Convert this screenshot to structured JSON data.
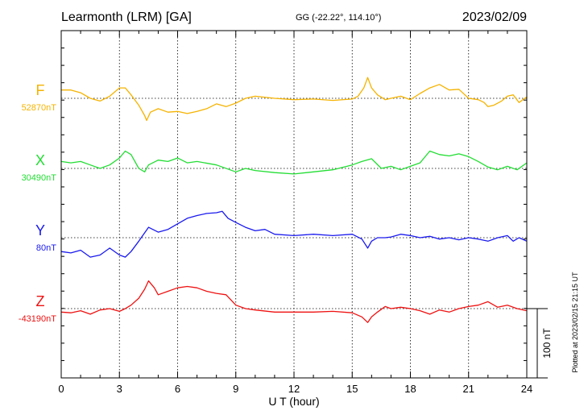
{
  "header": {
    "station": "Learmonth (LRM)  [GA]",
    "coords": "GG (-22.22°, 114.10°)",
    "date": "2023/02/09"
  },
  "footer": {
    "plotted": "Plotted at 2023/02/15 21:15 UT"
  },
  "chart_data": {
    "type": "line",
    "xlabel": "U T (hour)",
    "xlim": [
      0,
      24
    ],
    "xticks": [
      0,
      3,
      6,
      9,
      12,
      15,
      18,
      21,
      24
    ],
    "scale_bar": "100 nT",
    "scale_bar_nT": 100,
    "grid": true,
    "series": [
      {
        "name": "F",
        "baseline_label": "52870nT",
        "color": "#f5b301",
        "x": [
          0,
          0.5,
          1,
          1.5,
          2,
          2.5,
          3,
          3.3,
          3.6,
          4,
          4.3,
          4.4,
          4.6,
          5,
          5.5,
          6,
          6.5,
          7,
          7.5,
          8,
          8.5,
          9,
          9.5,
          10,
          11,
          12,
          13,
          14,
          15,
          15.3,
          15.6,
          15.8,
          16,
          16.3,
          16.7,
          17,
          17.5,
          18,
          18.5,
          19,
          19.5,
          20,
          20.5,
          21,
          21.5,
          21.8,
          22,
          22.3,
          22.7,
          23,
          23.3,
          23.6,
          24
        ],
        "y": [
          12,
          12,
          8,
          0,
          -4,
          3,
          15,
          15,
          5,
          -10,
          -25,
          -32,
          -20,
          -15,
          -20,
          -19,
          -22,
          -19,
          -15,
          -8,
          -12,
          -7,
          0,
          3,
          0,
          -2,
          -1,
          -3,
          -1,
          3,
          15,
          30,
          15,
          5,
          -2,
          0,
          3,
          -2,
          7,
          15,
          20,
          12,
          13,
          0,
          -2,
          -6,
          -12,
          -10,
          -4,
          3,
          5,
          -6,
          2
        ]
      },
      {
        "name": "X",
        "baseline_label": "30490nT",
        "color": "#22dd33",
        "x": [
          0,
          0.5,
          1,
          1.5,
          2,
          2.5,
          3,
          3.3,
          3.6,
          4,
          4.3,
          4.5,
          5,
          5.5,
          6,
          6.5,
          7,
          8,
          9,
          9.5,
          10,
          11,
          12,
          13,
          14,
          15,
          15.5,
          16,
          16.5,
          17,
          17.5,
          18,
          18.5,
          19,
          19.5,
          20,
          20.5,
          21,
          21.5,
          22,
          22.5,
          23,
          23.5,
          24
        ],
        "y": [
          10,
          8,
          10,
          5,
          0,
          5,
          15,
          25,
          20,
          0,
          -5,
          5,
          12,
          10,
          15,
          8,
          10,
          5,
          -5,
          0,
          -3,
          -6,
          -8,
          -5,
          -2,
          5,
          10,
          14,
          0,
          3,
          -2,
          3,
          8,
          25,
          20,
          18,
          21,
          17,
          10,
          2,
          -2,
          3,
          -2,
          8
        ]
      },
      {
        "name": "Y",
        "baseline_label": "80nT",
        "color": "#1a1aee",
        "x": [
          0,
          0.5,
          1,
          1.5,
          2,
          2.5,
          3,
          3.3,
          3.6,
          4,
          4.5,
          5,
          5.5,
          6,
          6.5,
          7,
          7.5,
          8,
          8.3,
          8.6,
          9,
          9.5,
          10,
          10.5,
          11,
          12,
          13,
          14,
          15,
          15.5,
          15.8,
          16,
          16.3,
          16.7,
          17,
          17.5,
          18,
          18.5,
          19,
          19.5,
          20,
          20.5,
          21,
          21.5,
          22,
          22.5,
          23,
          23.3,
          23.6,
          24
        ],
        "y": [
          -20,
          -22,
          -18,
          -28,
          -25,
          -15,
          -25,
          -28,
          -20,
          -5,
          15,
          8,
          12,
          20,
          28,
          32,
          35,
          36,
          38,
          28,
          22,
          15,
          10,
          12,
          5,
          3,
          5,
          3,
          5,
          -2,
          -15,
          -5,
          0,
          0,
          1,
          5,
          3,
          0,
          2,
          -2,
          0,
          -3,
          0,
          -2,
          -5,
          0,
          3,
          -5,
          0,
          -5
        ]
      },
      {
        "name": "Z",
        "baseline_label": "-43190nT",
        "color": "#ee1111",
        "x": [
          0,
          0.5,
          1,
          1.5,
          2,
          2.5,
          3,
          3.3,
          3.6,
          4,
          4.3,
          4.5,
          4.8,
          5,
          5.5,
          6,
          6.5,
          7,
          7.5,
          8,
          8.5,
          9,
          9.5,
          10,
          11,
          12,
          13,
          14,
          15,
          15.5,
          15.8,
          16,
          16.3,
          16.7,
          17,
          17.5,
          18,
          18.5,
          19,
          19.5,
          20,
          20.5,
          21,
          21.5,
          22,
          22.5,
          23,
          23.5,
          24
        ],
        "y": [
          -5,
          -6,
          -3,
          -8,
          -2,
          0,
          -4,
          0,
          5,
          15,
          28,
          40,
          30,
          20,
          25,
          30,
          32,
          30,
          25,
          22,
          20,
          5,
          0,
          -2,
          -5,
          -5,
          -5,
          -4,
          -6,
          -12,
          -20,
          -12,
          -5,
          3,
          0,
          2,
          0,
          -3,
          -8,
          -2,
          -5,
          0,
          3,
          5,
          10,
          2,
          5,
          0,
          -3
        ]
      }
    ]
  }
}
